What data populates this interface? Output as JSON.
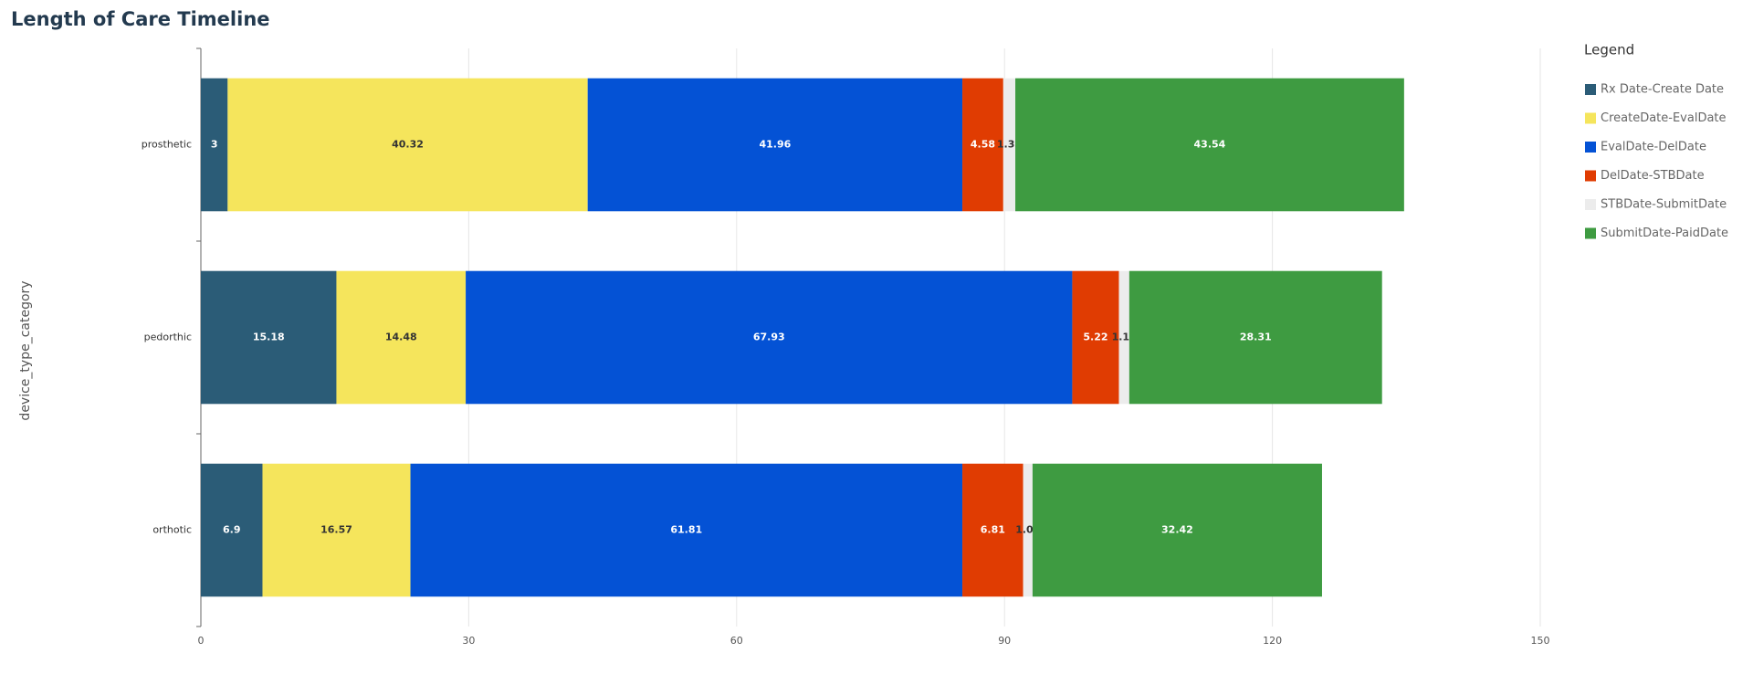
{
  "chart_data": {
    "type": "stacked_bar_horizontal",
    "title": "Length of Care Timeline",
    "y_label": "device_type_category",
    "legend_title": "Legend",
    "categories": [
      "prosthetic",
      "pedorthic",
      "orthotic"
    ],
    "series": [
      {
        "name": "Rx Date-Create Date",
        "color": "#2b5c77",
        "values": [
          3,
          15.18,
          6.9
        ]
      },
      {
        "name": "CreateDate-EvalDate",
        "color": "#f5e55c",
        "values": [
          40.32,
          14.48,
          16.57
        ]
      },
      {
        "name": "EvalDate-DelDate",
        "color": "#0452d5",
        "values": [
          41.96,
          67.93,
          61.81
        ]
      },
      {
        "name": "DelDate-STBDate",
        "color": "#e03c02",
        "values": [
          4.58,
          5.22,
          6.81
        ]
      },
      {
        "name": "STBDate-SubmitDate",
        "color": "#ececec",
        "values": [
          1.35,
          1.16,
          1.05
        ]
      },
      {
        "name": "SubmitDate-PaidDate",
        "color": "#3e9b41",
        "values": [
          43.54,
          28.31,
          32.42
        ]
      }
    ],
    "xlim": [
      0,
      150
    ],
    "xticks": [
      0,
      30,
      60,
      90,
      120,
      150
    ],
    "grid": true,
    "legend_position": "right"
  }
}
